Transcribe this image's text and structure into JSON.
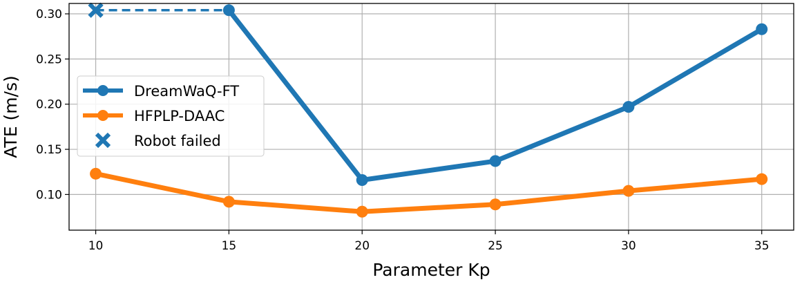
{
  "chart_data": {
    "type": "line",
    "title": "",
    "xlabel": "Parameter Kp",
    "ylabel": "ATE (m/s)",
    "x": [
      10,
      15,
      20,
      25,
      30,
      35
    ],
    "x_ticks": [
      "10",
      "15",
      "20",
      "25",
      "30",
      "35"
    ],
    "y_ticks": [
      "0.10",
      "0.15",
      "0.20",
      "0.25",
      "0.30"
    ],
    "xlim": [
      9.0,
      36.2
    ],
    "ylim": [
      0.0605,
      0.3115
    ],
    "grid": true,
    "legend_position": "center-left",
    "series": [
      {
        "name": "DreamWaQ-FT",
        "color": "#1f77b4",
        "x": [
          15,
          20,
          25,
          30,
          35
        ],
        "values": [
          0.304,
          0.116,
          0.137,
          0.197,
          0.283
        ]
      },
      {
        "name": "HFPLP-DAAC",
        "color": "#ff7f0e",
        "x": [
          10,
          15,
          20,
          25,
          30,
          35
        ],
        "values": [
          0.123,
          0.092,
          0.081,
          0.089,
          0.104,
          0.117
        ]
      }
    ],
    "failure_marker": {
      "name": "Robot failed",
      "color": "#1f77b4",
      "marker": "x",
      "x": 10,
      "y": 0.304,
      "dashed_link_to_x": 15
    }
  }
}
